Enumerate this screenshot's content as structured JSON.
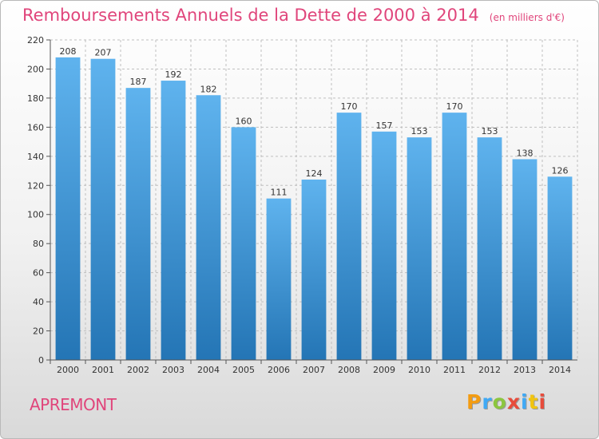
{
  "chart_data": {
    "type": "bar",
    "title": "Remboursements Annuels de la Dette de 2000 à 2014",
    "subtitle": "(en milliers d'€)",
    "categories": [
      "2000",
      "2001",
      "2002",
      "2003",
      "2004",
      "2005",
      "2006",
      "2007",
      "2008",
      "2009",
      "2010",
      "2011",
      "2012",
      "2013",
      "2014"
    ],
    "values": [
      208,
      207,
      187,
      192,
      182,
      160,
      111,
      124,
      170,
      157,
      153,
      170,
      153,
      138,
      126
    ],
    "ylim": [
      0,
      220
    ],
    "yticks": [
      0,
      20,
      40,
      60,
      80,
      100,
      120,
      140,
      160,
      180,
      200,
      220
    ],
    "xlabel": "",
    "ylabel": "",
    "grid": true,
    "legend": "none"
  },
  "footer": {
    "commune": "APREMONT",
    "brand_letters": [
      "P",
      "r",
      "o",
      "x",
      "i",
      "t",
      "i"
    ]
  },
  "colors": {
    "title": "#e0457b",
    "bar_top": "#5fb3ee",
    "bar_bottom": "#2475b5",
    "grid": "#bfbfbf",
    "axis_text": "#333333",
    "brand": [
      "#f39c12",
      "#3fa9f5",
      "#8cc63f",
      "#e74c3c",
      "#3fa9f5",
      "#f1c40f",
      "#e74c3c"
    ]
  }
}
